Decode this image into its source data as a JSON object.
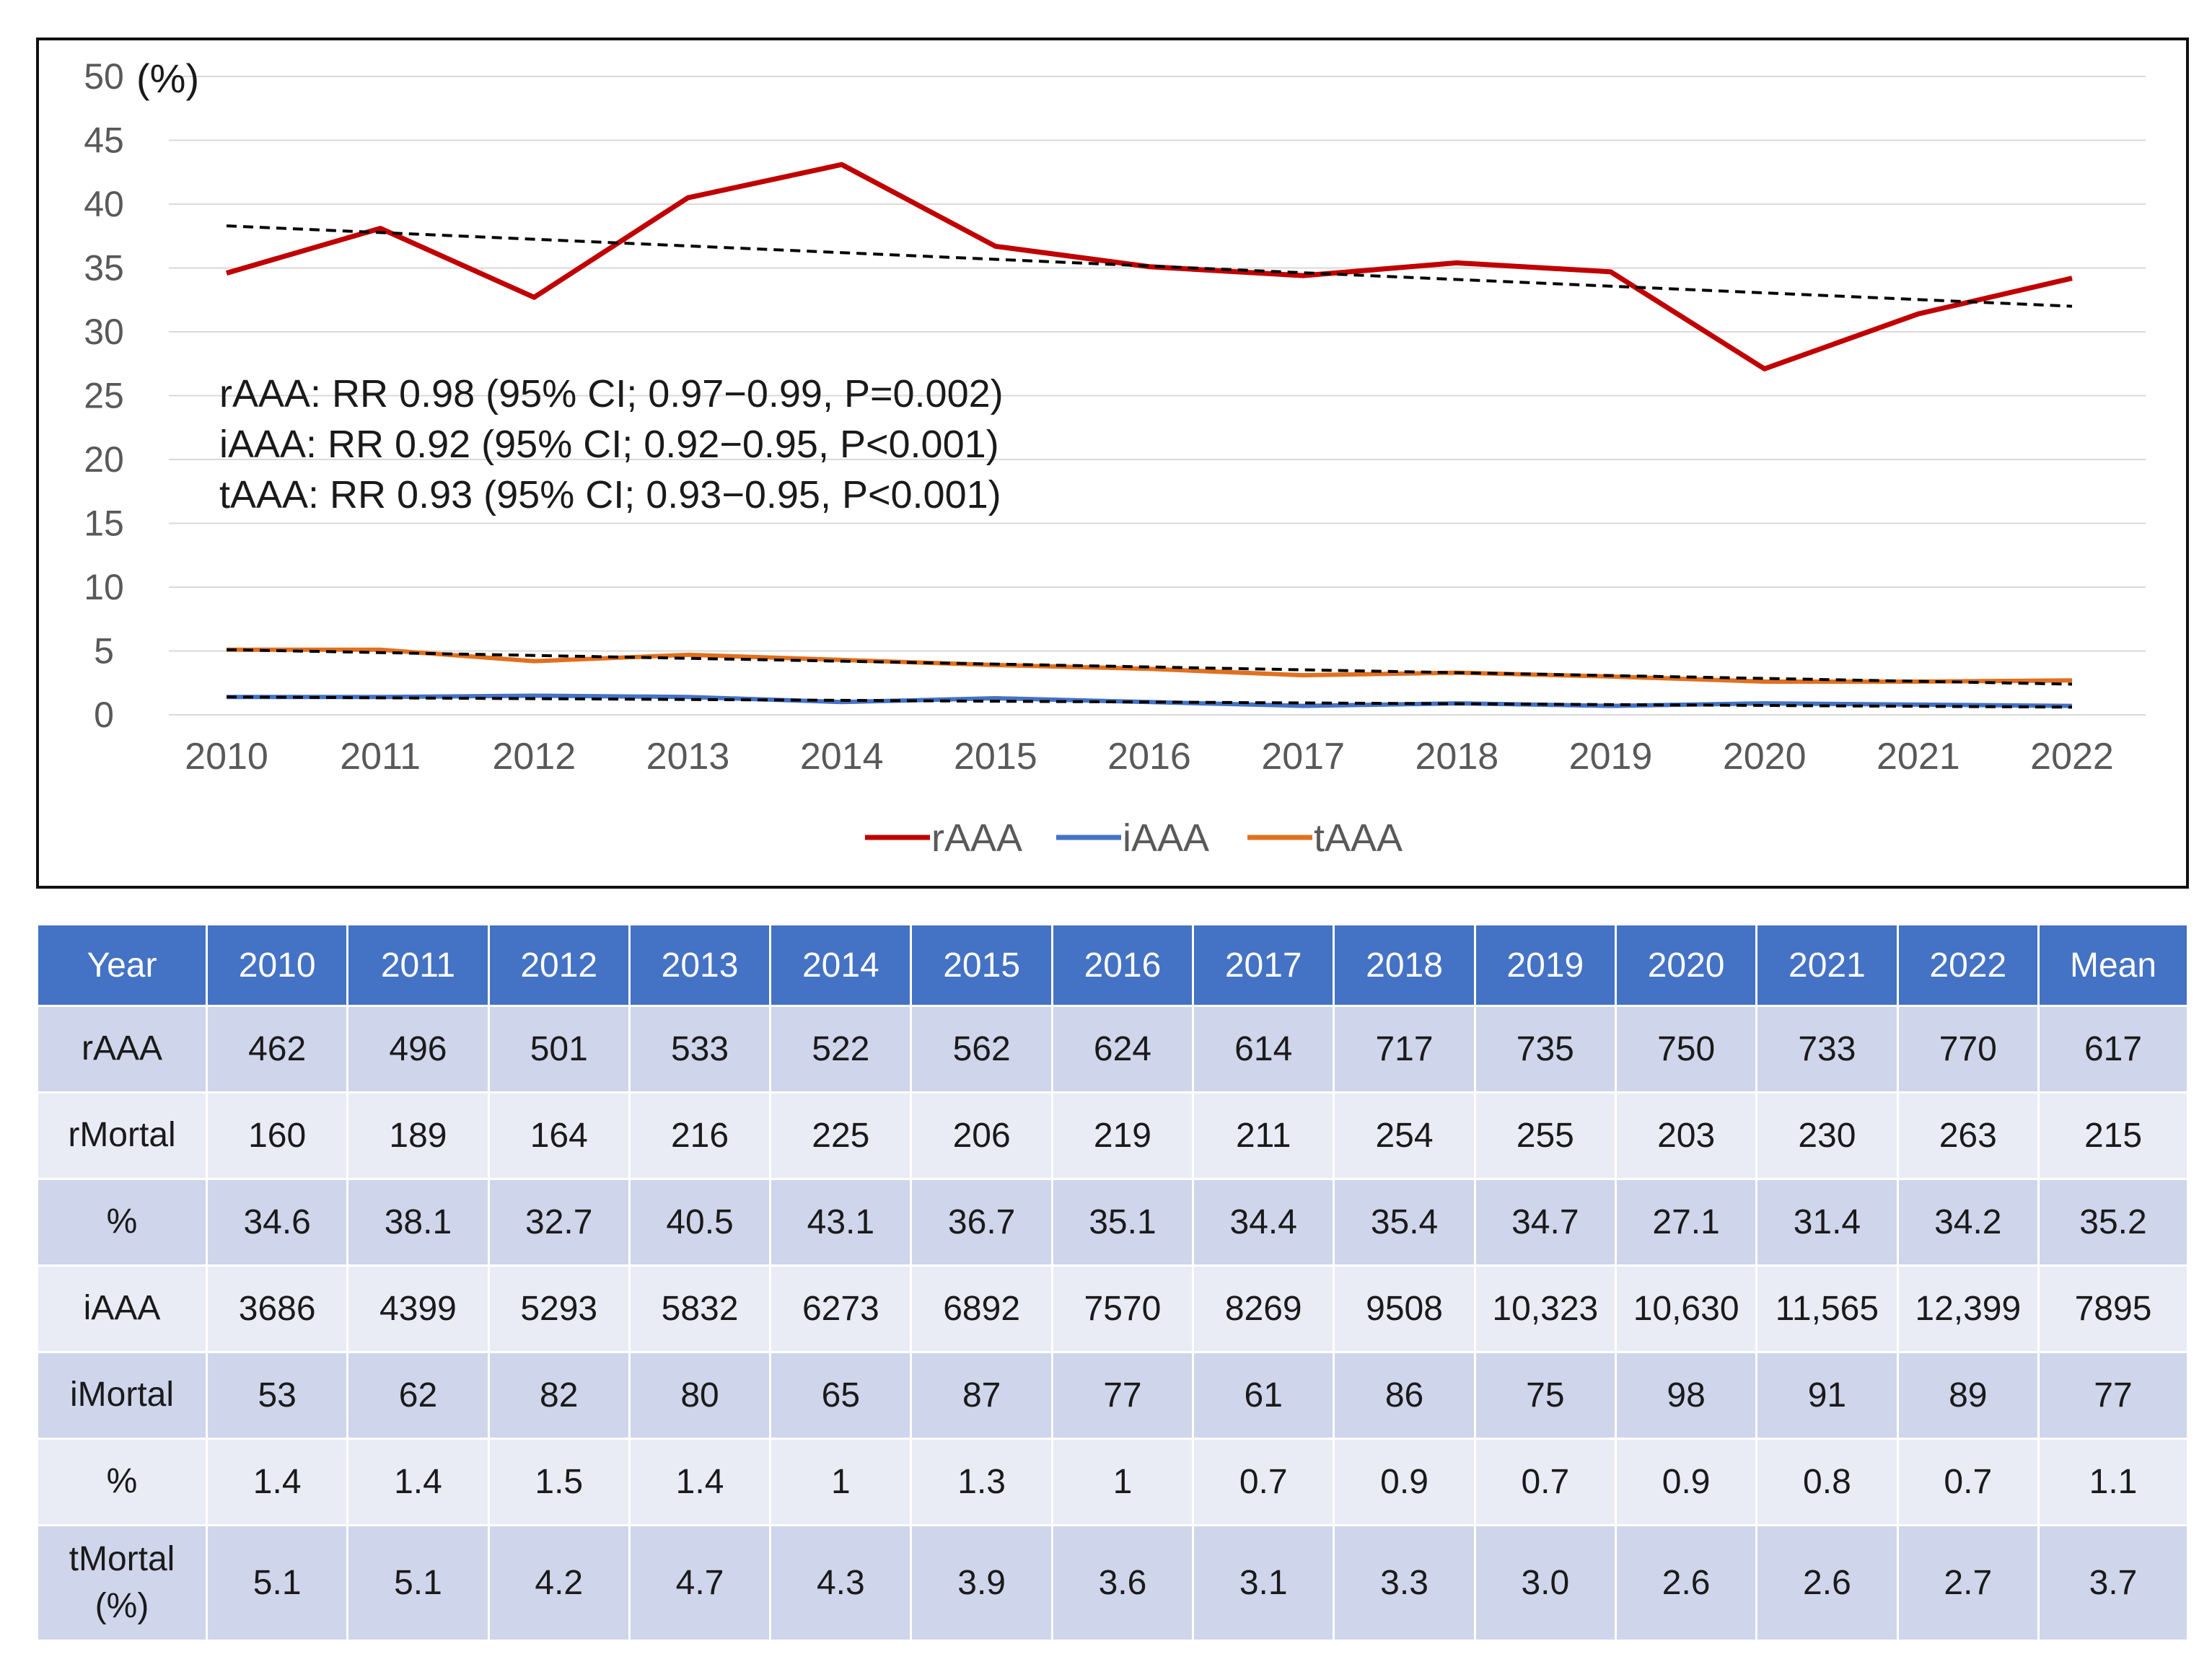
{
  "chart_data": {
    "type": "line",
    "x": [
      2010,
      2011,
      2012,
      2013,
      2014,
      2015,
      2016,
      2017,
      2018,
      2019,
      2020,
      2021,
      2022
    ],
    "ylim": [
      0,
      50
    ],
    "yticks": [
      0,
      5,
      10,
      15,
      20,
      25,
      30,
      35,
      40,
      45,
      50
    ],
    "ylabel": "(%)",
    "grid": true,
    "legend_position": "bottom-center",
    "series": [
      {
        "name": "rAAA",
        "color": "#c00000",
        "values": [
          34.6,
          38.1,
          32.7,
          40.5,
          43.1,
          36.7,
          35.1,
          34.4,
          35.4,
          34.7,
          27.1,
          31.4,
          34.2
        ]
      },
      {
        "name": "iAAA",
        "color": "#4472c4",
        "values": [
          1.4,
          1.4,
          1.5,
          1.4,
          1,
          1.3,
          1,
          0.7,
          0.9,
          0.7,
          0.9,
          0.8,
          0.7
        ]
      },
      {
        "name": "tAAA",
        "color": "#e07020",
        "values": [
          5.1,
          5.1,
          4.2,
          4.7,
          4.3,
          3.9,
          3.6,
          3.1,
          3.3,
          3.0,
          2.6,
          2.6,
          2.7
        ]
      }
    ],
    "trendlines": [
      {
        "series": "rAAA",
        "start": 38.3,
        "end": 32.0,
        "style": "dashed",
        "color": "#000000"
      },
      {
        "series": "tAAA",
        "start": 5.1,
        "end": 2.4,
        "style": "dashed",
        "color": "#000000"
      },
      {
        "series": "iAAA",
        "start": 1.4,
        "end": 0.6,
        "style": "dashed",
        "color": "#000000"
      }
    ],
    "annotations": [
      "rAAA: RR 0.98 (95% CI; 0.97−0.99, P=0.002)",
      "iAAA: RR 0.92 (95% CI; 0.92−0.95, P<0.001)",
      "tAAA: RR 0.93 (95% CI; 0.93−0.95, P<0.001)"
    ]
  },
  "table": {
    "headers": [
      "Year",
      "2010",
      "2011",
      "2012",
      "2013",
      "2014",
      "2015",
      "2016",
      "2017",
      "2018",
      "2019",
      "2020",
      "2021",
      "2022",
      "Mean"
    ],
    "rows": [
      [
        "rAAA",
        "462",
        "496",
        "501",
        "533",
        "522",
        "562",
        "624",
        "614",
        "717",
        "735",
        "750",
        "733",
        "770",
        "617"
      ],
      [
        "rMortal",
        "160",
        "189",
        "164",
        "216",
        "225",
        "206",
        "219",
        "211",
        "254",
        "255",
        "203",
        "230",
        "263",
        "215"
      ],
      [
        "%",
        "34.6",
        "38.1",
        "32.7",
        "40.5",
        "43.1",
        "36.7",
        "35.1",
        "34.4",
        "35.4",
        "34.7",
        "27.1",
        "31.4",
        "34.2",
        "35.2"
      ],
      [
        "iAAA",
        "3686",
        "4399",
        "5293",
        "5832",
        "6273",
        "6892",
        "7570",
        "8269",
        "9508",
        "10,323",
        "10,630",
        "11,565",
        "12,399",
        "7895"
      ],
      [
        "iMortal",
        "53",
        "62",
        "82",
        "80",
        "65",
        "87",
        "77",
        "61",
        "86",
        "75",
        "98",
        "91",
        "89",
        "77"
      ],
      [
        "%",
        "1.4",
        "1.4",
        "1.5",
        "1.4",
        "1",
        "1.3",
        "1",
        "0.7",
        "0.9",
        "0.7",
        "0.9",
        "0.8",
        "0.7",
        "1.1"
      ],
      [
        "tMortal\n(%)",
        "5.1",
        "5.1",
        "4.2",
        "4.7",
        "4.3",
        "3.9",
        "3.6",
        "3.1",
        "3.3",
        "3.0",
        "2.6",
        "2.6",
        "2.7",
        "3.7"
      ]
    ]
  }
}
